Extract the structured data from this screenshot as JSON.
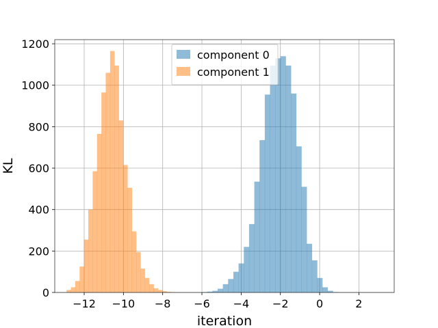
{
  "chart_data": {
    "type": "histogram",
    "xlabel": "iteration",
    "ylabel": "KL",
    "xlim": [
      -13.5,
      3.8
    ],
    "ylim": [
      0,
      1220
    ],
    "xticks": [
      -12,
      -10,
      -8,
      -6,
      -4,
      -2,
      0,
      2
    ],
    "xtick_labels": [
      "−12",
      "−10",
      "−8",
      "−6",
      "−4",
      "−2",
      "0",
      "2"
    ],
    "yticks": [
      0,
      200,
      400,
      600,
      800,
      1000,
      1200
    ],
    "ytick_labels": [
      "0",
      "200",
      "400",
      "600",
      "800",
      "1000",
      "1200"
    ],
    "grid": true,
    "legend_position": "top-center",
    "series": [
      {
        "name": "component 0",
        "color": "#1f77b4",
        "alpha": 0.5,
        "bin_start": -6.0,
        "bin_width": 0.267,
        "counts": [
          2,
          4,
          8,
          18,
          40,
          65,
          100,
          140,
          220,
          330,
          535,
          735,
          955,
          1095,
          1130,
          1140,
          1095,
          960,
          705,
          510,
          235,
          155,
          70,
          25,
          8,
          2
        ]
      },
      {
        "name": "component 1",
        "color": "#ff7f0e",
        "alpha": 0.5,
        "bin_start": -12.9,
        "bin_width": 0.222,
        "counts": [
          12,
          25,
          55,
          125,
          255,
          400,
          585,
          765,
          965,
          1060,
          1165,
          1095,
          830,
          615,
          505,
          295,
          195,
          115,
          70,
          40,
          20,
          12,
          6,
          3,
          2
        ]
      }
    ]
  }
}
